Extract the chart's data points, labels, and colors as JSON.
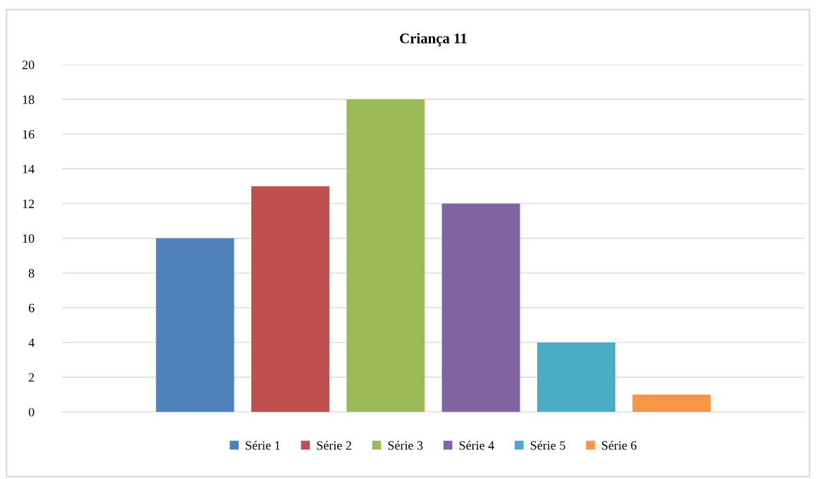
{
  "chart_data": {
    "type": "bar",
    "title": "Criança 11",
    "categories": [
      null
    ],
    "series": [
      {
        "name": "Série 1",
        "color": "#4f81bd",
        "values": [
          10
        ]
      },
      {
        "name": "Série 2",
        "color": "#c0504d",
        "values": [
          13
        ]
      },
      {
        "name": "Série 3",
        "color": "#9bbb59",
        "values": [
          18
        ]
      },
      {
        "name": "Série 4",
        "color": "#8064a2",
        "values": [
          12
        ]
      },
      {
        "name": "Série 5",
        "color": "#4bacc6",
        "values": [
          4
        ]
      },
      {
        "name": "Série 6",
        "color": "#f79646",
        "values": [
          1
        ]
      }
    ],
    "ylim": [
      0,
      20
    ],
    "yticks": [
      0,
      2,
      4,
      6,
      8,
      10,
      12,
      14,
      16,
      18,
      20
    ],
    "grid": "y",
    "legend": "bottom"
  }
}
